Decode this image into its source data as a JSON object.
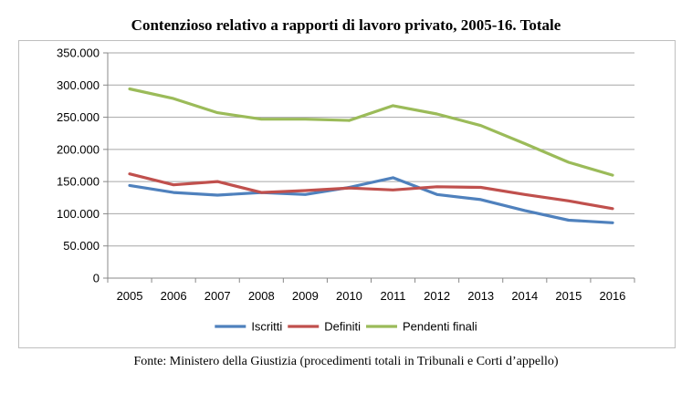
{
  "chart_data": {
    "type": "line",
    "title": "Contenzioso relativo a rapporti di lavoro privato, 2005-16. Totale",
    "xlabel": "",
    "ylabel": "",
    "categories": [
      "2005",
      "2006",
      "2007",
      "2008",
      "2009",
      "2010",
      "2011",
      "2012",
      "2013",
      "2014",
      "2015",
      "2016"
    ],
    "ylim": [
      0,
      350000
    ],
    "yticks": [
      0,
      50000,
      100000,
      150000,
      200000,
      250000,
      300000,
      350000
    ],
    "ytick_labels": [
      "0",
      "50.000",
      "100.000",
      "150.000",
      "200.000",
      "250.000",
      "300.000",
      "350.000"
    ],
    "grid": true,
    "legend_position": "bottom",
    "series": [
      {
        "name": "Iscritti",
        "color": "#4f81bd",
        "values": [
          144000,
          133000,
          129000,
          133000,
          130000,
          141000,
          156000,
          130000,
          122000,
          105000,
          90000,
          86000
        ]
      },
      {
        "name": "Definiti",
        "color": "#c0504d",
        "values": [
          162000,
          145000,
          150000,
          133000,
          136000,
          140000,
          137000,
          142000,
          141000,
          130000,
          120000,
          108000
        ]
      },
      {
        "name": "Pendenti finali",
        "color": "#9bbb59",
        "values": [
          294000,
          279000,
          257000,
          247000,
          247000,
          245000,
          268000,
          255000,
          237000,
          209000,
          180000,
          160000
        ]
      }
    ]
  },
  "source_note": "Fonte: Ministero della Giustizia (procedimenti totali in Tribunali e Corti d’appello)"
}
